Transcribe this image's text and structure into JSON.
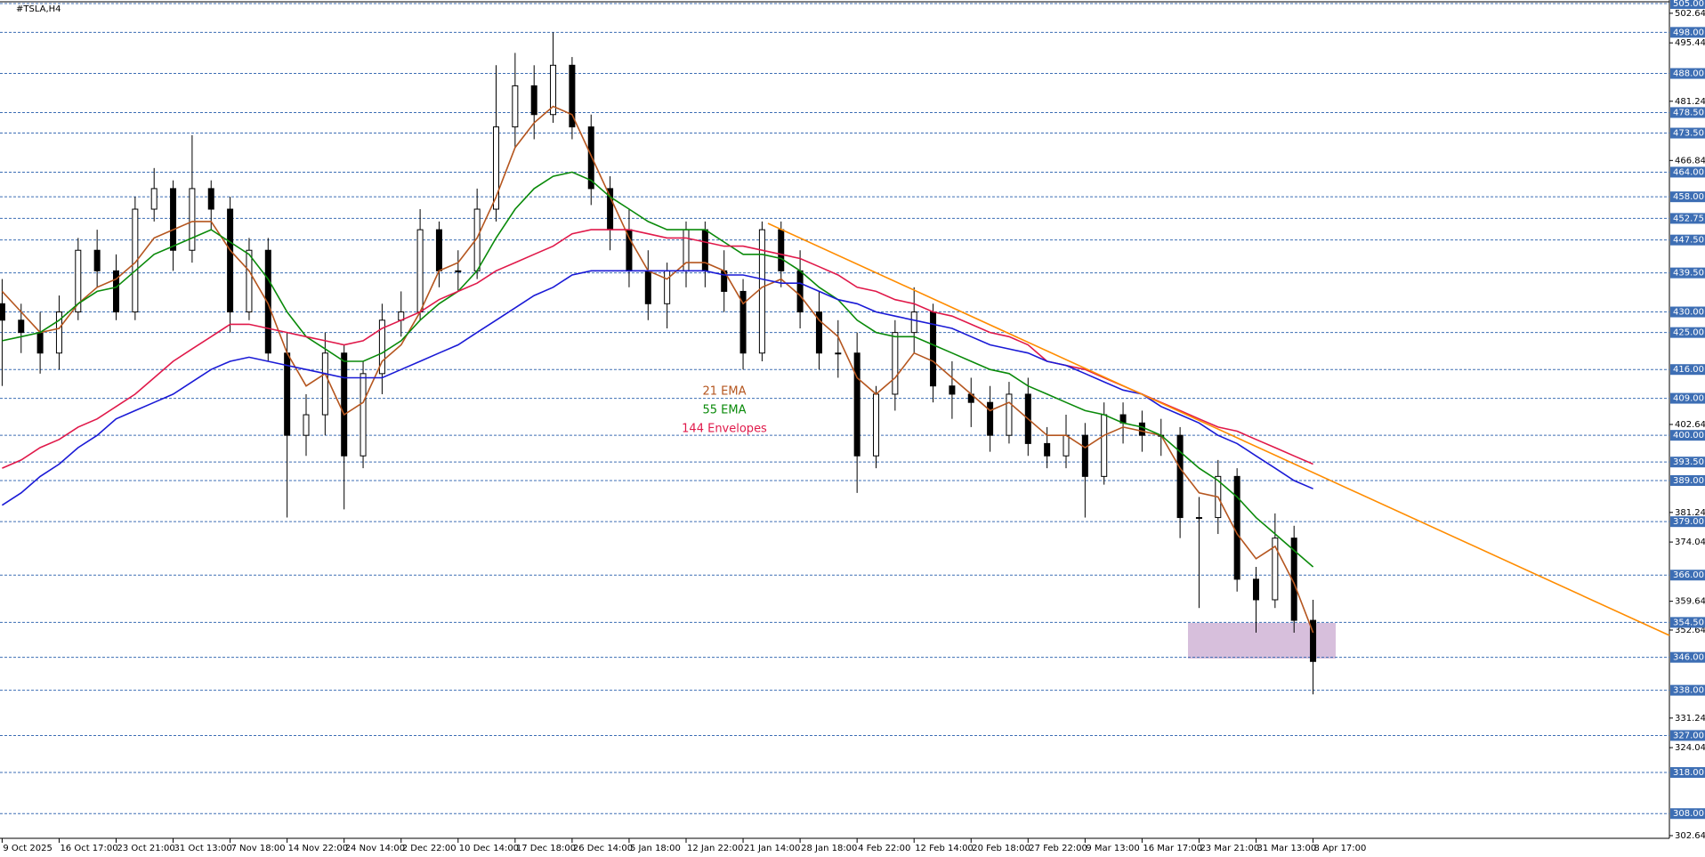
{
  "chart_data": {
    "type": "candlestick",
    "title": "#TSLA,H4",
    "categories": [
      "9 Oct 2025",
      null,
      null,
      "16 Oct 17:00",
      null,
      null,
      "23 Oct 21:00",
      null,
      null,
      "31 Oct 13:00",
      null,
      null,
      "7 Nov 18:00",
      null,
      null,
      "14 Nov 22:00",
      null,
      null,
      "24 Nov 14:00",
      null,
      null,
      "2 Dec 22:00",
      null,
      null,
      "10 Dec 14:00",
      null,
      null,
      "17 Dec 18:00",
      null,
      null,
      "26 Dec 14:00",
      null,
      null,
      "5 Jan 18:00",
      null,
      null,
      "12 Jan 22:00",
      null,
      null,
      "21 Jan 14:00",
      null,
      null,
      "28 Jan 18:00",
      null,
      null,
      "4 Feb 22:00",
      null,
      null,
      "12 Feb 14:00",
      null,
      null,
      "20 Feb 18:00",
      null,
      null,
      "27 Feb 22:00",
      null,
      null,
      "9 Mar 13:00",
      null,
      null,
      "16 Mar 17:00",
      null,
      null,
      "23 Mar 21:00",
      null,
      null,
      "31 Mar 13:00",
      null,
      null,
      "8 Apr 17:00"
    ],
    "open": [
      432,
      428,
      425,
      420,
      430,
      445,
      440,
      430,
      455,
      460,
      445,
      460,
      455,
      430,
      445,
      420,
      400,
      405,
      420,
      395,
      415,
      428,
      430,
      450,
      440,
      440,
      455,
      475,
      485,
      478,
      490,
      475,
      460,
      450,
      440,
      432,
      440,
      450,
      440,
      435,
      420,
      450,
      440,
      430,
      420,
      420,
      395,
      410,
      425,
      430,
      412,
      410,
      408,
      400,
      410,
      398,
      395,
      400,
      390,
      405,
      403,
      400,
      400,
      380,
      380,
      390,
      365,
      360,
      375,
      355
    ],
    "high": [
      438,
      432,
      430,
      434,
      448,
      450,
      444,
      458,
      465,
      462,
      473,
      462,
      458,
      448,
      448,
      425,
      410,
      425,
      422,
      418,
      432,
      435,
      455,
      452,
      445,
      460,
      490,
      493,
      490,
      498,
      492,
      478,
      463,
      455,
      445,
      442,
      452,
      452,
      445,
      438,
      452,
      452,
      445,
      435,
      428,
      425,
      412,
      428,
      436,
      432,
      418,
      414,
      412,
      413,
      414,
      402,
      405,
      403,
      408,
      408,
      406,
      404,
      402,
      385,
      394,
      392,
      368,
      381,
      378,
      360
    ],
    "low": [
      412,
      420,
      415,
      416,
      428,
      436,
      428,
      428,
      452,
      440,
      442,
      450,
      425,
      428,
      418,
      380,
      395,
      400,
      382,
      392,
      410,
      424,
      428,
      436,
      435,
      438,
      452,
      470,
      472,
      476,
      472,
      456,
      445,
      436,
      428,
      426,
      436,
      436,
      430,
      416,
      418,
      436,
      426,
      416,
      414,
      386,
      392,
      406,
      420,
      408,
      404,
      402,
      396,
      398,
      395,
      392,
      392,
      380,
      388,
      398,
      396,
      395,
      375,
      358,
      376,
      362,
      352,
      358,
      352,
      337
    ],
    "close": [
      428,
      425,
      420,
      430,
      445,
      440,
      430,
      455,
      460,
      445,
      460,
      455,
      430,
      445,
      420,
      400,
      405,
      420,
      395,
      415,
      428,
      430,
      450,
      440,
      440,
      455,
      475,
      485,
      478,
      490,
      475,
      460,
      450,
      440,
      432,
      440,
      450,
      440,
      435,
      420,
      450,
      440,
      430,
      420,
      420,
      395,
      410,
      425,
      430,
      412,
      410,
      408,
      400,
      410,
      398,
      395,
      400,
      390,
      405,
      403,
      400,
      400,
      380,
      380,
      390,
      365,
      360,
      375,
      355,
      345
    ],
    "candle_color": "#000000",
    "series": [
      {
        "name": "21 EMA",
        "color": "#b5561f",
        "values": [
          435,
          430,
          425,
          426,
          432,
          436,
          438,
          442,
          448,
          450,
          452,
          452,
          445,
          440,
          432,
          420,
          412,
          415,
          405,
          408,
          418,
          422,
          430,
          440,
          442,
          448,
          458,
          470,
          476,
          480,
          478,
          468,
          458,
          448,
          440,
          438,
          442,
          442,
          440,
          432,
          436,
          438,
          434,
          428,
          424,
          414,
          410,
          414,
          420,
          418,
          414,
          410,
          406,
          408,
          404,
          400,
          400,
          397,
          400,
          402,
          401,
          400,
          392,
          386,
          385,
          376,
          370,
          373,
          364,
          352
        ]
      },
      {
        "name": "55 EMA",
        "color": "#0a8a0a",
        "values": [
          423,
          424,
          425,
          428,
          432,
          435,
          436,
          440,
          444,
          446,
          448,
          450,
          447,
          444,
          438,
          430,
          424,
          421,
          418,
          418,
          420,
          423,
          428,
          432,
          435,
          440,
          448,
          455,
          460,
          463,
          464,
          462,
          458,
          455,
          452,
          450,
          450,
          450,
          447,
          444,
          444,
          443,
          440,
          436,
          433,
          428,
          425,
          424,
          424,
          422,
          420,
          418,
          416,
          415,
          412,
          410,
          408,
          406,
          405,
          403,
          402,
          400,
          396,
          392,
          389,
          385,
          380,
          376,
          372,
          368
        ]
      },
      {
        "name": "144 Envelopes",
        "color": "#e0194a",
        "values": [
          392,
          394,
          397,
          399,
          402,
          404,
          407,
          410,
          414,
          418,
          421,
          424,
          427,
          427,
          426,
          425,
          424,
          423,
          422,
          423,
          426,
          428,
          430,
          433,
          435,
          437,
          440,
          442,
          444,
          446,
          449,
          450,
          450,
          450,
          449,
          448,
          448,
          447,
          446,
          446,
          445,
          444,
          443,
          441,
          439,
          436,
          435,
          433,
          432,
          430,
          429,
          427,
          425,
          424,
          422,
          418,
          417,
          416,
          414,
          412,
          410,
          408,
          406,
          404,
          402,
          401,
          399,
          397,
          395,
          393
        ]
      },
      {
        "color": "#1a1ad6",
        "values": [
          383,
          386,
          390,
          393,
          397,
          400,
          404,
          406,
          408,
          410,
          413,
          416,
          418,
          419,
          418,
          417,
          416,
          415,
          414,
          414,
          414,
          416,
          418,
          420,
          422,
          425,
          428,
          431,
          434,
          436,
          439,
          440,
          440,
          440,
          440,
          440,
          440,
          440,
          439,
          439,
          438,
          437,
          437,
          435,
          433,
          432,
          430,
          429,
          428,
          427,
          426,
          424,
          422,
          421,
          420,
          418,
          417,
          415,
          413,
          411,
          410,
          407,
          405,
          403,
          400,
          398,
          395,
          392,
          389,
          387
        ]
      }
    ],
    "ylim": [
      302.64,
      505
    ],
    "yticks": [
      502.64,
      495.44,
      481.24,
      466.84,
      402.64,
      381.24,
      374.04,
      359.64,
      352.64,
      331.24,
      324.04,
      302.64
    ],
    "levels": [
      {
        "value": 505,
        "label": "505.00"
      },
      {
        "value": 498,
        "label": "498.00"
      },
      {
        "value": 488,
        "label": "488.00"
      },
      {
        "value": 478.5,
        "label": "478.50"
      },
      {
        "value": 473.5,
        "label": "473.50"
      },
      {
        "value": 464,
        "label": "464.00"
      },
      {
        "value": 458,
        "label": "458.00"
      },
      {
        "value": 452.75,
        "label": "452.75"
      },
      {
        "value": 447.5,
        "label": "447.50"
      },
      {
        "value": 439.5,
        "label": "439.50"
      },
      {
        "value": 430,
        "label": "430.00"
      },
      {
        "value": 425,
        "label": "425.00"
      },
      {
        "value": 416,
        "label": "416.00"
      },
      {
        "value": 409,
        "label": "409.00"
      },
      {
        "value": 400,
        "label": "400.00"
      },
      {
        "value": 393.5,
        "label": "393.50"
      },
      {
        "value": 389,
        "label": "389.00"
      },
      {
        "value": 379,
        "label": "379.00"
      },
      {
        "value": 366,
        "label": "366.00"
      },
      {
        "value": 354.5,
        "label": "354.50"
      },
      {
        "value": 346,
        "label": "346.00"
      },
      {
        "value": 338,
        "label": "338.00"
      },
      {
        "value": 327,
        "label": "327.00"
      },
      {
        "value": 318,
        "label": "318.00"
      },
      {
        "value": 308,
        "label": "308.00"
      }
    ],
    "level_color": "#3d6eb4"
  }
}
